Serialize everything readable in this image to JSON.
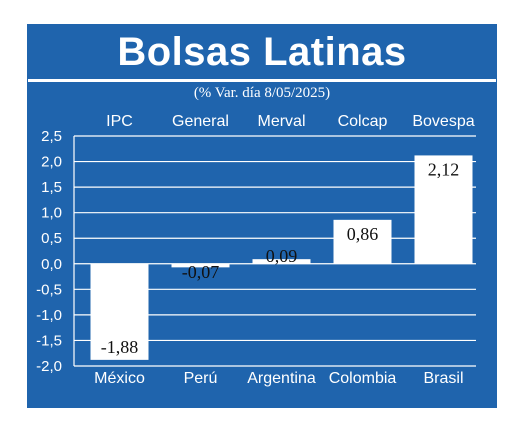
{
  "chart_data": {
    "type": "bar",
    "title": "Bolsas Latinas",
    "subtitle": "(% Var. día 8/05/2025)",
    "categories": [
      "IPC",
      "General",
      "Merval",
      "Colcap",
      "Bovespa"
    ],
    "countries": [
      "México",
      "Perú",
      "Argentina",
      "Colombia",
      "Brasil"
    ],
    "values": [
      -1.88,
      -0.07,
      0.09,
      0.86,
      2.12
    ],
    "value_labels": [
      "-1,88",
      "-0,07",
      "0,09",
      "0,86",
      "2,12"
    ],
    "yticks": [
      "2,5",
      "2,0",
      "1,5",
      "1,0",
      "0,5",
      "0,0",
      "-0,5",
      "-1,0",
      "-1,5",
      "-2,0"
    ],
    "ylim": [
      -2.0,
      2.5
    ],
    "grid": true,
    "colors": {
      "background": "#1f64ad",
      "bar": "#ffffff",
      "text": "#ffffff",
      "value_text": "#111111"
    }
  }
}
